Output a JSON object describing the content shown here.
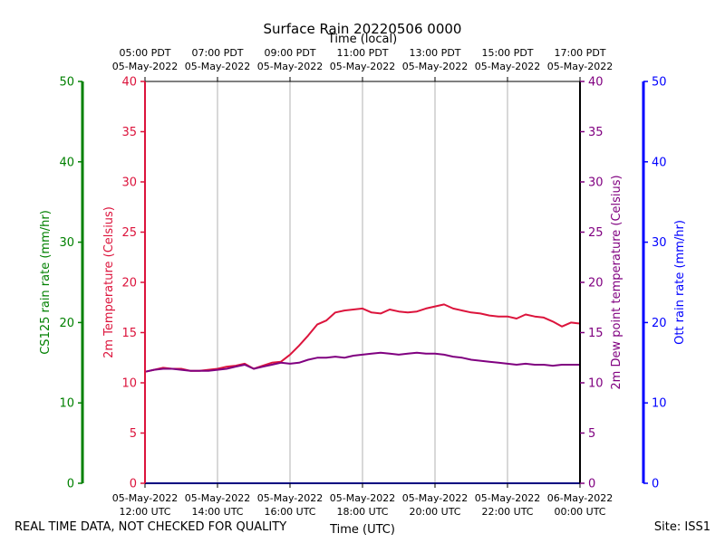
{
  "chart_data": {
    "type": "line",
    "title": "Surface Rain 20220506 0000",
    "top_axis_label": "Time (local)",
    "bottom_axis_label": "Time (UTC)",
    "footer_left": "REAL TIME DATA, NOT CHECKED FOR QUALITY",
    "footer_right": "Site: ISS1",
    "colors": {
      "cs125": "#008000",
      "temperature": "#dc143c",
      "dewpoint": "#800080",
      "ott": "#0000ff",
      "grid": "#b0b0b0",
      "frame": "#000000"
    },
    "x_range_hours_utc": [
      12,
      24
    ],
    "x_ticks_utc": [
      {
        "hour": 12,
        "date": "05-May-2022",
        "time": "12:00 UTC"
      },
      {
        "hour": 14,
        "date": "05-May-2022",
        "time": "14:00 UTC"
      },
      {
        "hour": 16,
        "date": "05-May-2022",
        "time": "16:00 UTC"
      },
      {
        "hour": 18,
        "date": "05-May-2022",
        "time": "18:00 UTC"
      },
      {
        "hour": 20,
        "date": "05-May-2022",
        "time": "20:00 UTC"
      },
      {
        "hour": 22,
        "date": "05-May-2022",
        "time": "22:00 UTC"
      },
      {
        "hour": 24,
        "date": "06-May-2022",
        "time": "00:00 UTC"
      }
    ],
    "x_ticks_local": [
      {
        "hour": 12,
        "time": "05:00 PDT",
        "date": "05-May-2022"
      },
      {
        "hour": 14,
        "time": "07:00 PDT",
        "date": "05-May-2022"
      },
      {
        "hour": 16,
        "time": "09:00 PDT",
        "date": "05-May-2022"
      },
      {
        "hour": 18,
        "time": "11:00 PDT",
        "date": "05-May-2022"
      },
      {
        "hour": 20,
        "time": "13:00 PDT",
        "date": "05-May-2022"
      },
      {
        "hour": 22,
        "time": "15:00 PDT",
        "date": "05-May-2022"
      },
      {
        "hour": 24,
        "time": "17:00 PDT",
        "date": "05-May-2022"
      }
    ],
    "axes": {
      "cs125": {
        "label": "CS125 rain rate (mm/hr)",
        "ylim": [
          0,
          50
        ],
        "ticks": [
          0,
          10,
          20,
          30,
          40,
          50
        ]
      },
      "temperature": {
        "label": "2m Temperature (Celsius)",
        "ylim": [
          0,
          40
        ],
        "ticks": [
          0,
          5,
          10,
          15,
          20,
          25,
          30,
          35,
          40
        ]
      },
      "dewpoint": {
        "label": "2m Dew point temperature (Celsius)",
        "ylim": [
          0,
          40
        ],
        "ticks": [
          0,
          5,
          10,
          15,
          20,
          25,
          30,
          35,
          40
        ]
      },
      "ott": {
        "label": "Ott rain rate (mm/hr)",
        "ylim": [
          0,
          50
        ],
        "ticks": [
          0,
          10,
          20,
          30,
          40,
          50
        ]
      }
    },
    "series": [
      {
        "name": "2m Temperature",
        "axis": "temperature",
        "x_hours": [
          12.0,
          12.25,
          12.5,
          12.75,
          13.0,
          13.25,
          13.5,
          13.75,
          14.0,
          14.25,
          14.5,
          14.75,
          15.0,
          15.25,
          15.5,
          15.75,
          16.0,
          16.25,
          16.5,
          16.75,
          17.0,
          17.25,
          17.5,
          17.75,
          18.0,
          18.25,
          18.5,
          18.75,
          19.0,
          19.25,
          19.5,
          19.75,
          20.0,
          20.25,
          20.5,
          20.75,
          21.0,
          21.25,
          21.5,
          21.75,
          22.0,
          22.25,
          22.5,
          22.75,
          23.0,
          23.25,
          23.5,
          23.75,
          24.0
        ],
        "values": [
          11.1,
          11.3,
          11.5,
          11.4,
          11.4,
          11.2,
          11.2,
          11.3,
          11.4,
          11.6,
          11.7,
          11.9,
          11.4,
          11.7,
          12.0,
          12.1,
          12.8,
          13.7,
          14.7,
          15.8,
          16.2,
          17.0,
          17.2,
          17.3,
          17.4,
          17.0,
          16.9,
          17.3,
          17.1,
          17.0,
          17.1,
          17.4,
          17.6,
          17.8,
          17.4,
          17.2,
          17.0,
          16.9,
          16.7,
          16.6,
          16.6,
          16.4,
          16.8,
          16.6,
          16.5,
          16.1,
          15.6,
          16.0,
          15.9
        ]
      },
      {
        "name": "2m Dew point temperature",
        "axis": "dewpoint",
        "x_hours": [
          12.0,
          12.25,
          12.5,
          12.75,
          13.0,
          13.25,
          13.5,
          13.75,
          14.0,
          14.25,
          14.5,
          14.75,
          15.0,
          15.25,
          15.5,
          15.75,
          16.0,
          16.25,
          16.5,
          16.75,
          17.0,
          17.25,
          17.5,
          17.75,
          18.0,
          18.25,
          18.5,
          18.75,
          19.0,
          19.25,
          19.5,
          19.75,
          20.0,
          20.25,
          20.5,
          20.75,
          21.0,
          21.25,
          21.5,
          21.75,
          22.0,
          22.25,
          22.5,
          22.75,
          23.0,
          23.25,
          23.5,
          23.75,
          24.0
        ],
        "values": [
          11.1,
          11.3,
          11.4,
          11.4,
          11.3,
          11.2,
          11.2,
          11.2,
          11.3,
          11.4,
          11.6,
          11.8,
          11.4,
          11.6,
          11.8,
          12.0,
          11.9,
          12.0,
          12.3,
          12.5,
          12.5,
          12.6,
          12.5,
          12.7,
          12.8,
          12.9,
          13.0,
          12.9,
          12.8,
          12.9,
          13.0,
          12.9,
          12.9,
          12.8,
          12.6,
          12.5,
          12.3,
          12.2,
          12.1,
          12.0,
          11.9,
          11.8,
          11.9,
          11.8,
          11.8,
          11.7,
          11.8,
          11.8,
          11.8
        ]
      },
      {
        "name": "CS125 rain rate",
        "axis": "cs125",
        "x_hours": [
          12,
          24
        ],
        "values": [
          0,
          0
        ]
      },
      {
        "name": "Ott rain rate",
        "axis": "ott",
        "x_hours": [
          12,
          24
        ],
        "values": [
          0,
          0
        ]
      }
    ]
  }
}
